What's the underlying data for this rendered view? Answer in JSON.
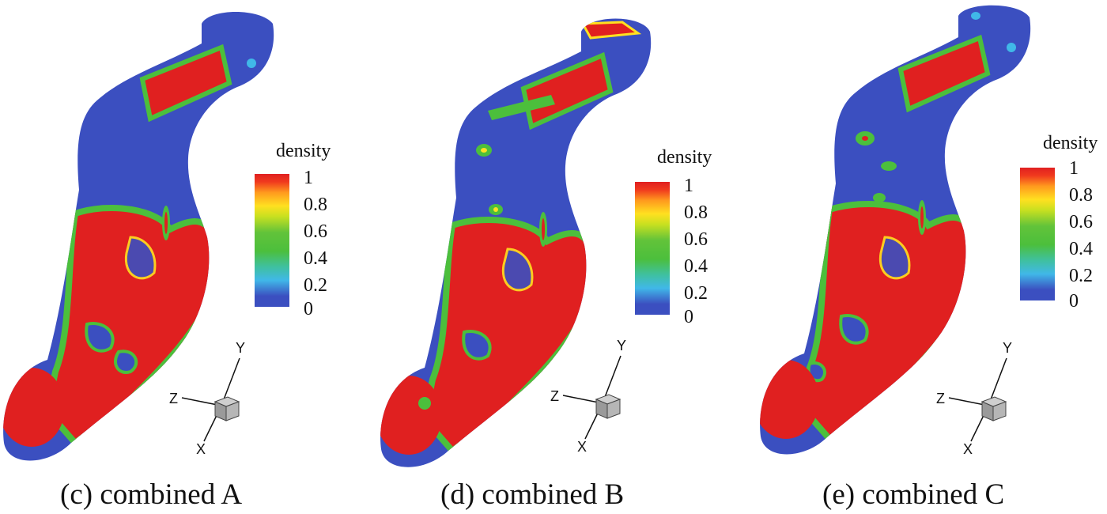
{
  "panels": [
    {
      "caption": "(c) combined A",
      "legend_title": "density",
      "ticks": [
        "1",
        "0.8",
        "0.6",
        "0.4",
        "0.2",
        "0"
      ],
      "axes": {
        "x": "X",
        "y": "Y",
        "z": "Z"
      }
    },
    {
      "caption": "(d) combined B",
      "legend_title": "density",
      "ticks": [
        "1",
        "0.8",
        "0.6",
        "0.4",
        "0.2",
        "0"
      ],
      "axes": {
        "x": "X",
        "y": "Y",
        "z": "Z"
      }
    },
    {
      "caption": "(e) combined C",
      "legend_title": "density",
      "ticks": [
        "1",
        "0.8",
        "0.6",
        "0.4",
        "0.2",
        "0"
      ],
      "axes": {
        "x": "X",
        "y": "Y",
        "z": "Z"
      }
    }
  ],
  "colors": {
    "low": "#3b4fc0",
    "mid": "#4cbf3c",
    "high": "#e02020",
    "axis_cube": "#9a9a9a"
  }
}
